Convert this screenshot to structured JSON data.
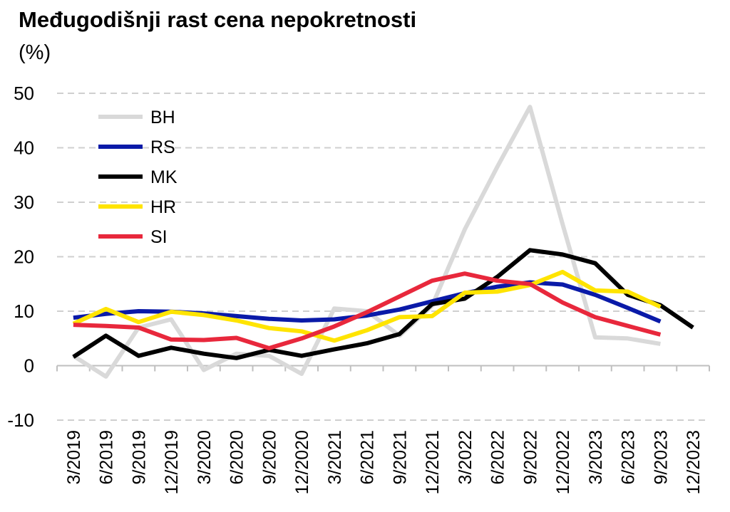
{
  "chart_data": {
    "type": "line",
    "title": "Međugodišnji rast cena nepokretnosti",
    "subtitle": "(%)",
    "xlabel": "",
    "ylabel": "",
    "ylim": [
      -10,
      50
    ],
    "yticks": [
      -10,
      0,
      10,
      20,
      30,
      40,
      50
    ],
    "grid": "horizontal dashed",
    "legend_position": "top-left",
    "categories": [
      "3/2019",
      "6/2019",
      "9/2019",
      "12/2019",
      "3/2020",
      "6/2020",
      "9/2020",
      "12/2020",
      "3/2021",
      "6/2021",
      "9/2021",
      "12/2021",
      "3/2022",
      "6/2022",
      "9/2022",
      "12/2022",
      "3/2023",
      "6/2023",
      "9/2023",
      "12/2023"
    ],
    "series": [
      {
        "name": "BH",
        "color": "#d9d9d9",
        "values": [
          1.8,
          -2.0,
          7.0,
          8.5,
          -0.8,
          2.2,
          1.8,
          -1.5,
          10.5,
          10.0,
          5.5,
          11.0,
          25.0,
          36.5,
          47.5,
          26.0,
          5.2,
          5.0,
          4.0,
          null
        ]
      },
      {
        "name": "RS",
        "color": "#0a1aa8",
        "values": [
          8.8,
          9.5,
          10.0,
          9.9,
          9.6,
          9.1,
          8.6,
          8.3,
          8.5,
          9.2,
          10.3,
          11.8,
          13.3,
          14.5,
          15.3,
          14.9,
          13.0,
          10.6,
          8.1,
          null
        ]
      },
      {
        "name": "MK",
        "color": "#000000",
        "values": [
          1.6,
          5.5,
          1.8,
          3.3,
          2.2,
          1.4,
          2.9,
          1.8,
          3.0,
          4.1,
          5.8,
          11.3,
          12.3,
          16.3,
          21.2,
          20.4,
          18.8,
          13.0,
          11.1,
          7.0
        ]
      },
      {
        "name": "HR",
        "color": "#ffe400",
        "values": [
          7.7,
          10.4,
          8.0,
          9.9,
          9.3,
          8.3,
          6.9,
          6.3,
          4.6,
          6.5,
          8.9,
          9.1,
          13.4,
          13.6,
          14.8,
          17.2,
          13.8,
          13.6,
          10.8,
          null
        ]
      },
      {
        "name": "SI",
        "color": "#e8283c",
        "values": [
          7.5,
          7.3,
          7.0,
          4.8,
          4.7,
          5.1,
          3.2,
          5.0,
          7.2,
          9.8,
          12.7,
          15.6,
          16.9,
          15.6,
          15.0,
          11.6,
          8.9,
          7.3,
          5.7,
          null
        ]
      }
    ]
  }
}
